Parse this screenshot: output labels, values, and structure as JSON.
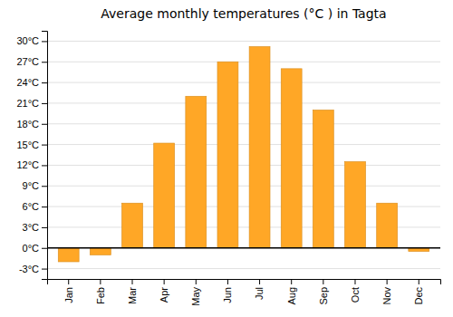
{
  "chart_data": {
    "type": "bar",
    "title": "Average monthly temperatures (°C ) in Tagta",
    "categories": [
      "Jan",
      "Feb",
      "Mar",
      "Apr",
      "May",
      "Jun",
      "Jul",
      "Aug",
      "Sep",
      "Oct",
      "Nov",
      "Dec"
    ],
    "values": [
      -2.0,
      -1.0,
      6.5,
      15.2,
      22.0,
      27.0,
      29.2,
      26.0,
      20.0,
      12.5,
      6.5,
      -0.5
    ],
    "color": "#FFA726",
    "ylim": [
      -4.5,
      31.5
    ],
    "yticks": [
      {
        "value": -3,
        "label": "-3°C"
      },
      {
        "value": 0,
        "label": "0°C"
      },
      {
        "value": 3,
        "label": "3°C"
      },
      {
        "value": 6,
        "label": "6°C"
      },
      {
        "value": 9,
        "label": "9°C"
      },
      {
        "value": 12,
        "label": "12°C"
      },
      {
        "value": 15,
        "label": "15°C"
      },
      {
        "value": 18,
        "label": "18°C"
      },
      {
        "value": 21,
        "label": "21°C"
      },
      {
        "value": 24,
        "label": "24°C"
      },
      {
        "value": 27,
        "label": "27°C"
      },
      {
        "value": 30,
        "label": "30°C"
      }
    ],
    "grid": true
  }
}
